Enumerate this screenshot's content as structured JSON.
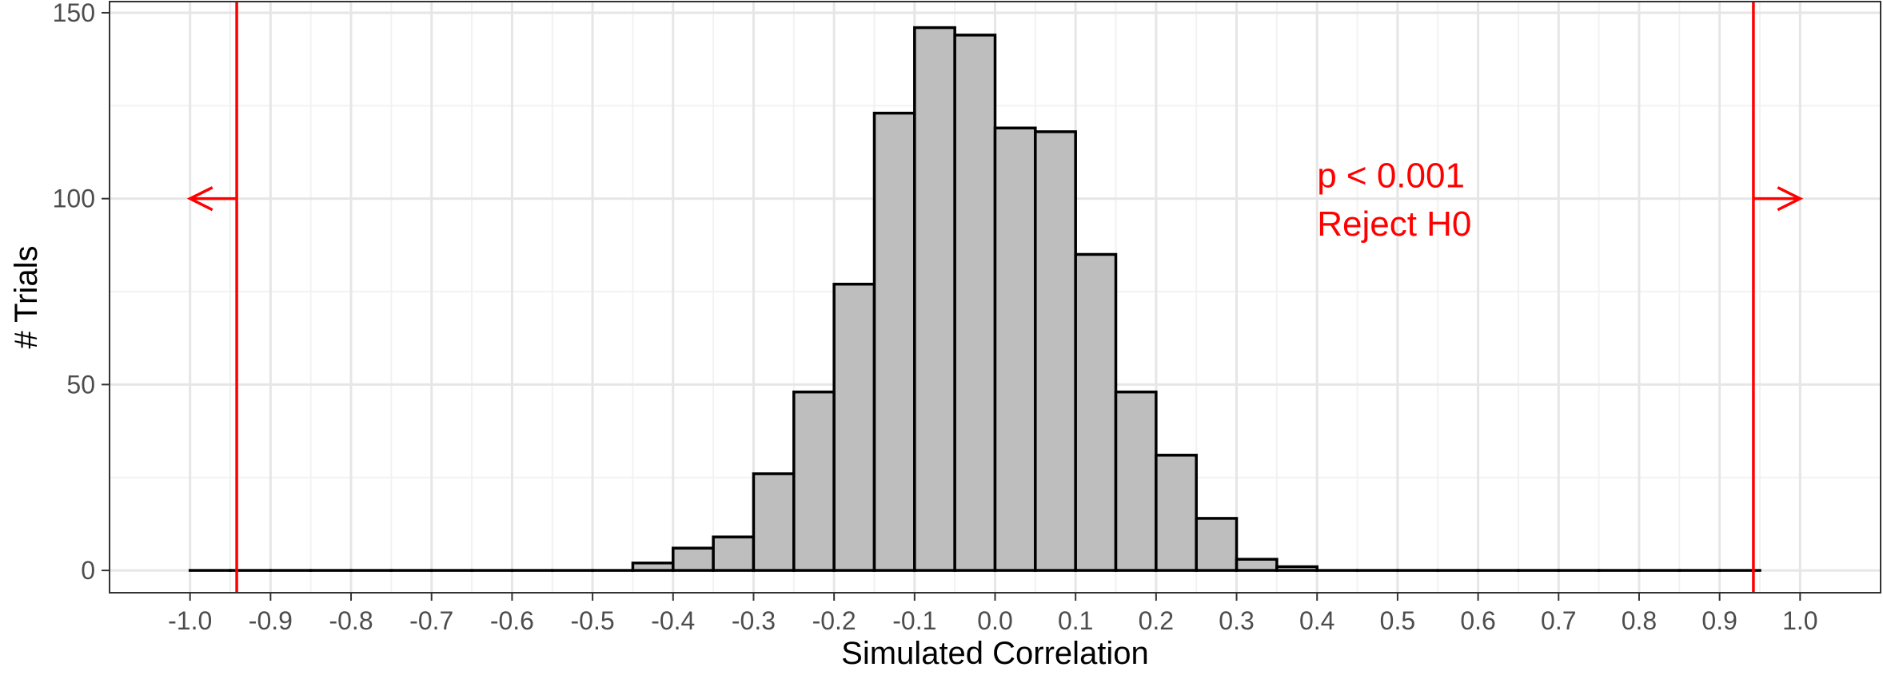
{
  "chart_data": {
    "type": "bar",
    "subtype": "histogram",
    "xlabel": "Simulated Correlation",
    "ylabel": "# Trials",
    "xlim": [
      -1.1,
      1.1
    ],
    "ylim": [
      -6,
      153
    ],
    "x_ticks": [
      "-1.0",
      "-0.9",
      "-0.8",
      "-0.7",
      "-0.6",
      "-0.5",
      "-0.4",
      "-0.3",
      "-0.2",
      "-0.1",
      "0.0",
      "0.1",
      "0.2",
      "0.3",
      "0.4",
      "0.5",
      "0.6",
      "0.7",
      "0.8",
      "0.9",
      "1.0"
    ],
    "x_tick_values": [
      -1.0,
      -0.9,
      -0.8,
      -0.7,
      -0.6,
      -0.5,
      -0.4,
      -0.3,
      -0.2,
      -0.1,
      0.0,
      0.1,
      0.2,
      0.3,
      0.4,
      0.5,
      0.6,
      0.7,
      0.8,
      0.9,
      1.0
    ],
    "y_ticks": [
      "0",
      "50",
      "100",
      "150"
    ],
    "y_tick_values": [
      0,
      50,
      100,
      150
    ],
    "grid": true,
    "bin_width": 0.05,
    "bins_start": -0.975,
    "values": [
      0,
      0,
      0,
      0,
      0,
      0,
      0,
      0,
      0,
      0,
      0,
      2,
      6,
      9,
      26,
      48,
      77,
      123,
      146,
      144,
      119,
      118,
      85,
      48,
      31,
      14,
      3,
      1,
      0,
      0,
      0,
      0,
      0,
      0,
      0,
      0,
      0,
      0,
      0
    ],
    "bar_fill": "#bebebe",
    "bar_stroke": "#000000",
    "reference_lines": [
      {
        "x": -0.942,
        "color": "#ff0000",
        "arrow": "left",
        "arrow_y": 100
      },
      {
        "x": 0.942,
        "color": "#ff0000",
        "arrow": "right",
        "arrow_y": 100
      }
    ],
    "annotations": [
      {
        "text": "p < 0.001",
        "x": 0.4,
        "y": 106,
        "color": "#ff0000"
      },
      {
        "text": "Reject H0",
        "x": 0.4,
        "y": 93,
        "color": "#ff0000"
      }
    ]
  }
}
